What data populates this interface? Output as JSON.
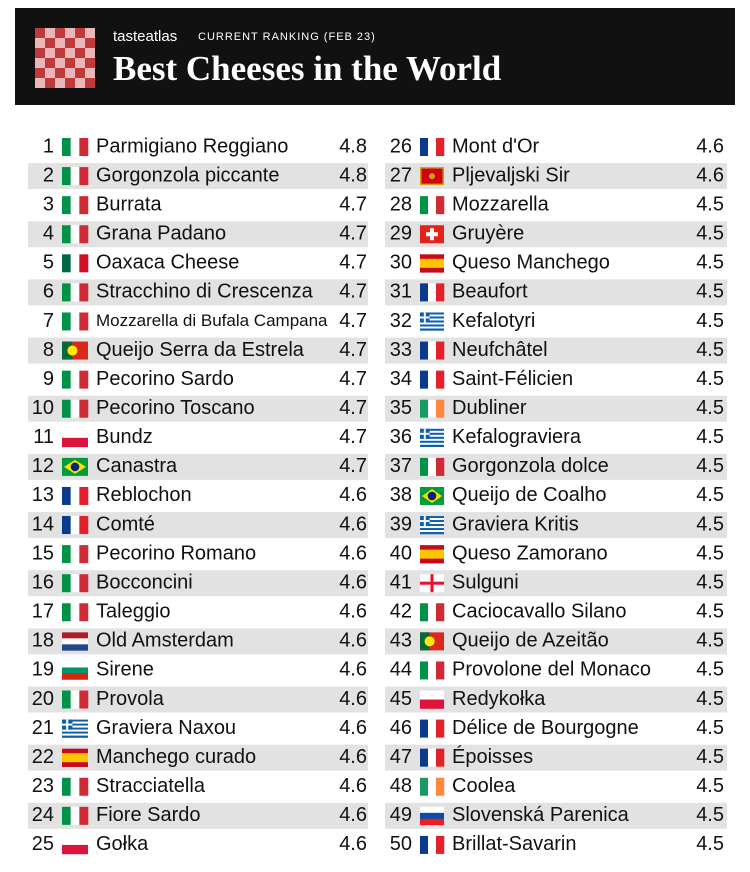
{
  "header": {
    "brand": "tasteatlas",
    "subtitle": "CURRENT RANKING (FEB 23)",
    "title": "Best Cheeses in the World"
  },
  "table": {
    "rows": [
      [
        1,
        "Parmigiano Reggiano",
        4.8
      ],
      [
        2,
        "Gorgonzola piccante",
        4.8
      ],
      [
        3,
        "Burrata",
        4.7
      ],
      [
        4,
        "Grana Padano",
        4.7
      ],
      [
        5,
        "Oaxaca Cheese",
        4.7
      ],
      [
        6,
        "Stracchino di Crescenza",
        4.7
      ],
      [
        7,
        "Mozzarella di Bufala Campana",
        4.7
      ],
      [
        8,
        "Queijo Serra da Estrela",
        4.7
      ],
      [
        9,
        "Pecorino Sardo",
        4.7
      ],
      [
        10,
        "Pecorino Toscano",
        4.7
      ],
      [
        11,
        "Bundz",
        4.7
      ],
      [
        12,
        "Canastra",
        4.7
      ],
      [
        13,
        "Reblochon",
        4.6
      ],
      [
        14,
        "Comté",
        4.6
      ],
      [
        15,
        "Pecorino Romano",
        4.6
      ],
      [
        16,
        "Bocconcini",
        4.6
      ],
      [
        17,
        "Taleggio",
        4.6
      ],
      [
        18,
        "Old Amsterdam",
        4.6
      ],
      [
        19,
        "Sirene",
        4.6
      ],
      [
        20,
        "Provola",
        4.6
      ],
      [
        21,
        "Graviera Naxou",
        4.6
      ],
      [
        22,
        "Manchego curado",
        4.6
      ],
      [
        23,
        "Stracciatella",
        4.6
      ],
      [
        24,
        "Fiore Sardo",
        4.6
      ],
      [
        25,
        "Gołka",
        4.6
      ],
      [
        26,
        "Mont d'Or",
        4.6
      ],
      [
        27,
        "Pljevaljski Sir",
        4.6
      ],
      [
        28,
        "Mozzarella",
        4.5
      ],
      [
        29,
        "Gruyère",
        4.5
      ],
      [
        30,
        "Queso Manchego",
        4.5
      ],
      [
        31,
        "Beaufort",
        4.5
      ],
      [
        32,
        "Kefalotyri",
        4.5
      ],
      [
        33,
        "Neufchâtel",
        4.5
      ],
      [
        34,
        "Saint-Félicien",
        4.5
      ],
      [
        35,
        "Dubliner",
        4.5
      ],
      [
        36,
        "Kefalograviera",
        4.5
      ],
      [
        37,
        "Gorgonzola dolce",
        4.5
      ],
      [
        38,
        "Queijo de Coalho",
        4.5
      ],
      [
        39,
        "Graviera Kritis",
        4.5
      ],
      [
        40,
        "Queso Zamorano",
        4.5
      ],
      [
        41,
        "Sulguni",
        4.5
      ],
      [
        42,
        "Caciocavallo Silano",
        4.5
      ],
      [
        43,
        "Queijo de Azeitão",
        4.5
      ],
      [
        44,
        "Provolone del Monaco",
        4.5
      ],
      [
        45,
        "Redykołka",
        4.5
      ],
      [
        46,
        "Délice de Bourgogne",
        4.5
      ],
      [
        47,
        "Époisses",
        4.5
      ],
      [
        48,
        "Coolea",
        4.5
      ],
      [
        49,
        "Slovenská Parenica",
        4.5
      ],
      [
        50,
        "Brillat-Savarin",
        4.5
      ]
    ]
  }
}
